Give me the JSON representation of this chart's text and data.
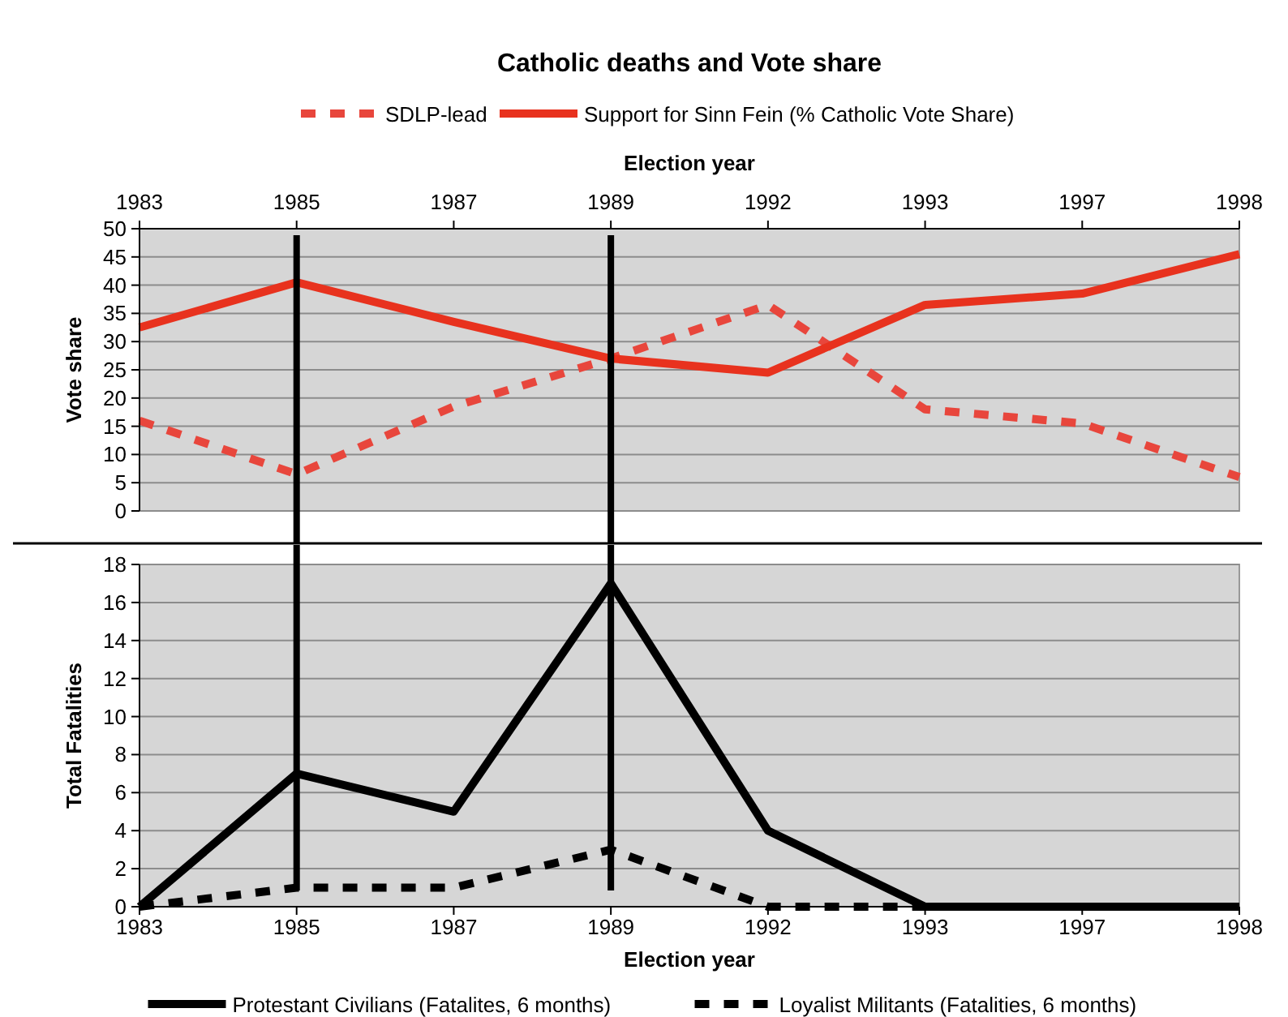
{
  "chart_data": [
    {
      "type": "line",
      "title": "Catholic deaths and Vote share",
      "xlabel": "Election year",
      "ylabel": "Vote share",
      "categories": [
        "1983",
        "1985",
        "1987",
        "1989",
        "1992",
        "1993",
        "1997",
        "1998"
      ],
      "series": [
        {
          "name": "SDLP-lead",
          "color": "#e8463c",
          "line_style": "dashed",
          "values": [
            16,
            6.5,
            18.5,
            27,
            36.5,
            18,
            15.5,
            6
          ]
        },
        {
          "name": "Support for Sinn Fein (% Catholic Vote Share)",
          "color": "#e8321e",
          "line_style": "solid",
          "values": [
            32.5,
            40.5,
            33.5,
            27,
            24.5,
            36.5,
            38.5,
            45.5
          ]
        }
      ],
      "ylim": [
        0,
        50
      ],
      "yticks": [
        0,
        5,
        10,
        15,
        20,
        25,
        30,
        35,
        40,
        45,
        50
      ],
      "grid": "y",
      "legend": "top",
      "marker": "none",
      "ref_lines": [
        {
          "axis": "x",
          "value": "1985",
          "color": "#000000"
        },
        {
          "axis": "x",
          "value": "1989",
          "color": "#000000"
        }
      ]
    },
    {
      "type": "line",
      "xlabel": "Election year",
      "ylabel": "Total Fatalities",
      "categories": [
        "1983",
        "1985",
        "1987",
        "1989",
        "1992",
        "1993",
        "1997",
        "1998"
      ],
      "series": [
        {
          "name": "Protestant Civilians (Fatalites, 6 months)",
          "color": "#000000",
          "line_style": "solid",
          "values": [
            0,
            7,
            5,
            17,
            4,
            0,
            0,
            0
          ]
        },
        {
          "name": "Loyalist Militants (Fatalities, 6 months)",
          "color": "#000000",
          "line_style": "dashed",
          "values": [
            0,
            1,
            1,
            3,
            0,
            0,
            0,
            0
          ]
        }
      ],
      "ylim": [
        0,
        18
      ],
      "yticks": [
        0,
        2,
        4,
        6,
        8,
        10,
        12,
        14,
        16,
        18
      ],
      "grid": "y",
      "legend": "bottom",
      "marker": "none",
      "ref_lines": [
        {
          "axis": "x",
          "value": "1985",
          "color": "#000000"
        },
        {
          "axis": "x",
          "value": "1989",
          "color": "#000000"
        }
      ]
    }
  ]
}
